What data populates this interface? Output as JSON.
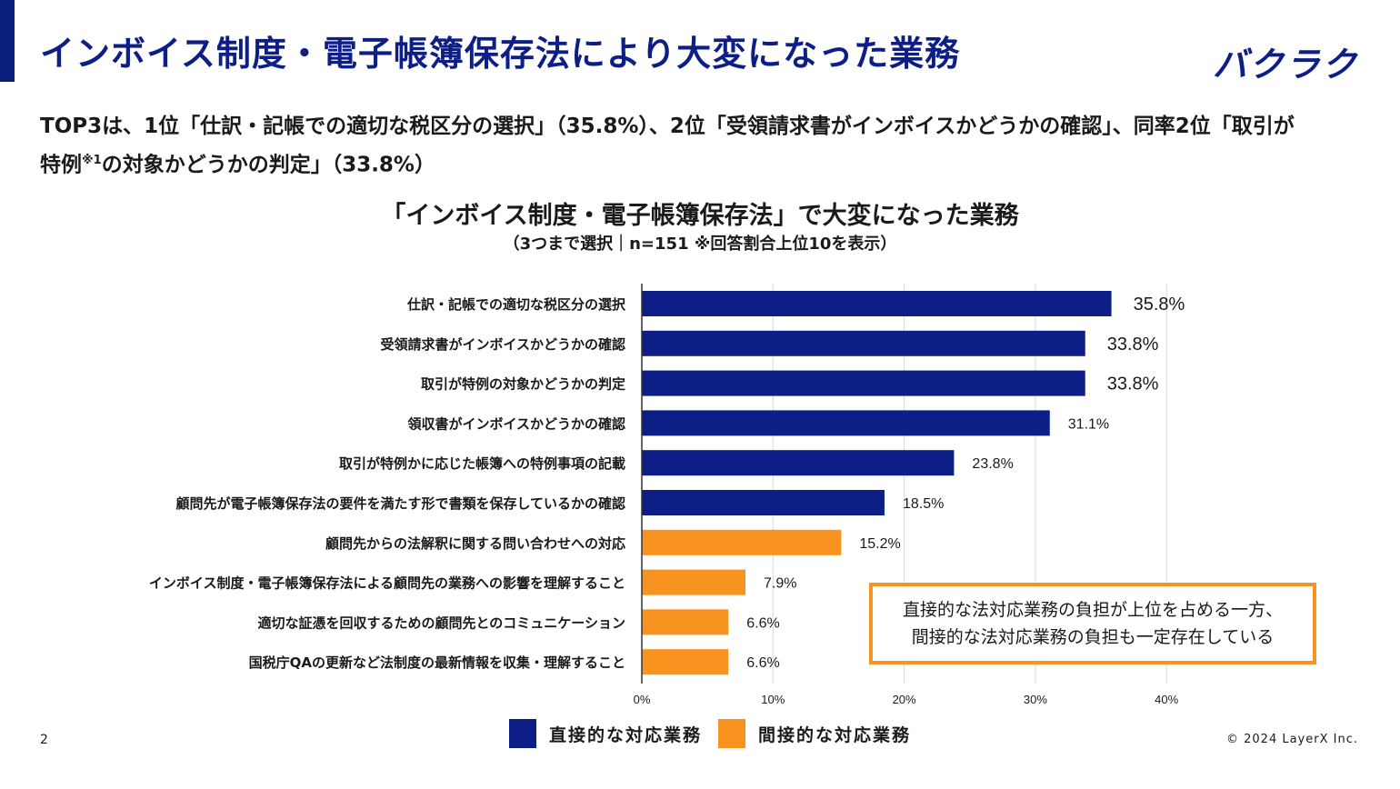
{
  "header": {
    "title": "インボイス制度・電子帳簿保存法により大変になった業務",
    "logo": "バクラク"
  },
  "summary": {
    "line1": "TOP3は、1位「仕訳・記帳での適切な税区分の選択」（35.8%）、2位「受領請求書がインボイスかどうかの確認」、同率2位「取引が",
    "line2_a": "特例",
    "line2_sup": "※1",
    "line2_b": "の対象かどうかの判定」（33.8%）"
  },
  "callout": {
    "line1": "直接的な法対応業務の負担が上位を占める一方、",
    "line2": "間接的な法対応業務の負担も一定存在している"
  },
  "legend": {
    "direct": "直接的な対応業務",
    "indirect": "間接的な対応業務"
  },
  "footer": {
    "page_number": "2",
    "copyright": "© 2024 LayerX Inc."
  },
  "colors": {
    "direct": "#0d1f87",
    "indirect": "#f7931e"
  },
  "chart_data": {
    "type": "bar",
    "orientation": "horizontal",
    "title": "「インボイス制度・電子帳簿保存法」で大変になった業務",
    "subtitle": "（3つまで選択｜n=151 ※回答割合上位10を表示）",
    "categories": [
      "仕訳・記帳での適切な税区分の選択",
      "受領請求書がインボイスかどうかの確認",
      "取引が特例の対象かどうかの判定",
      "領収書がインボイスかどうかの確認",
      "取引が特例かに応じた帳簿への特例事項の記載",
      "顧問先が電子帳簿保存法の要件を満たす形で書類を保存しているかの確認",
      "顧問先からの法解釈に関する問い合わせへの対応",
      "インボイス制度・電子帳簿保存法による顧問先の業務への影響を理解すること",
      "適切な証憑を回収するための顧問先とのコミュニケーション",
      "国税庁QAの更新など法制度の最新情報を収集・理解すること"
    ],
    "values": [
      35.8,
      33.8,
      33.8,
      31.1,
      23.8,
      18.5,
      15.2,
      7.9,
      6.6,
      6.6
    ],
    "labels": [
      "35.8%",
      "33.8%",
      "33.8%",
      "31.1%",
      "23.8%",
      "18.5%",
      "15.2%",
      "7.9%",
      "6.6%",
      "6.6%"
    ],
    "groups": [
      "direct",
      "direct",
      "direct",
      "direct",
      "direct",
      "direct",
      "indirect",
      "indirect",
      "indirect",
      "indirect"
    ],
    "emphasized": [
      true,
      true,
      true,
      false,
      false,
      false,
      false,
      false,
      false,
      false
    ],
    "xlim": [
      0,
      40
    ],
    "xticks": [
      0,
      10,
      20,
      30,
      40
    ],
    "xtick_labels": [
      "0%",
      "10%",
      "20%",
      "30%",
      "40%"
    ],
    "grid": true,
    "legend_position": "bottom"
  }
}
